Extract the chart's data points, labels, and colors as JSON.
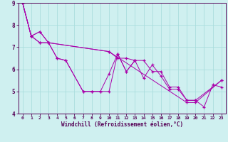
{
  "xlabel": "Windchill (Refroidissement éolien,°C)",
  "background_color": "#cff0f0",
  "grid_color": "#aadddd",
  "line_color": "#aa00aa",
  "axis_color": "#550055",
  "xlim": [
    -0.5,
    23.5
  ],
  "ylim": [
    4,
    9
  ],
  "xticks": [
    0,
    1,
    2,
    3,
    4,
    5,
    6,
    7,
    8,
    9,
    10,
    11,
    12,
    13,
    14,
    15,
    16,
    17,
    18,
    19,
    20,
    21,
    22,
    23
  ],
  "yticks": [
    4,
    5,
    6,
    7,
    8,
    9
  ],
  "series": [
    {
      "x": [
        0,
        1,
        2,
        3,
        4,
        5,
        7,
        8,
        9,
        10,
        11,
        12,
        13,
        14,
        15,
        16,
        17,
        18,
        19,
        20,
        21,
        22,
        23
      ],
      "y": [
        9.0,
        7.5,
        7.7,
        7.2,
        6.5,
        6.4,
        5.0,
        5.0,
        5.0,
        5.8,
        6.7,
        5.9,
        6.4,
        5.6,
        6.2,
        5.7,
        5.1,
        5.1,
        4.6,
        4.6,
        4.3,
        5.3,
        5.2
      ]
    },
    {
      "x": [
        0,
        1,
        2,
        3,
        10,
        11,
        12,
        13,
        14,
        15,
        16,
        17,
        18,
        19,
        20,
        23
      ],
      "y": [
        9.0,
        7.5,
        7.2,
        7.2,
        6.8,
        6.5,
        6.5,
        6.4,
        6.4,
        5.9,
        5.9,
        5.2,
        5.2,
        4.6,
        4.6,
        5.5
      ]
    },
    {
      "x": [
        0,
        1,
        2,
        3,
        10,
        19,
        20,
        23
      ],
      "y": [
        9.0,
        7.5,
        7.7,
        7.2,
        6.8,
        4.5,
        4.5,
        5.5
      ]
    },
    {
      "x": [
        0,
        1,
        2,
        3,
        4,
        5,
        7,
        8,
        9,
        10,
        11,
        12,
        13
      ],
      "y": [
        9.0,
        7.5,
        7.2,
        7.2,
        6.5,
        6.4,
        5.0,
        5.0,
        5.0,
        5.0,
        6.7,
        5.9,
        6.4
      ]
    }
  ]
}
